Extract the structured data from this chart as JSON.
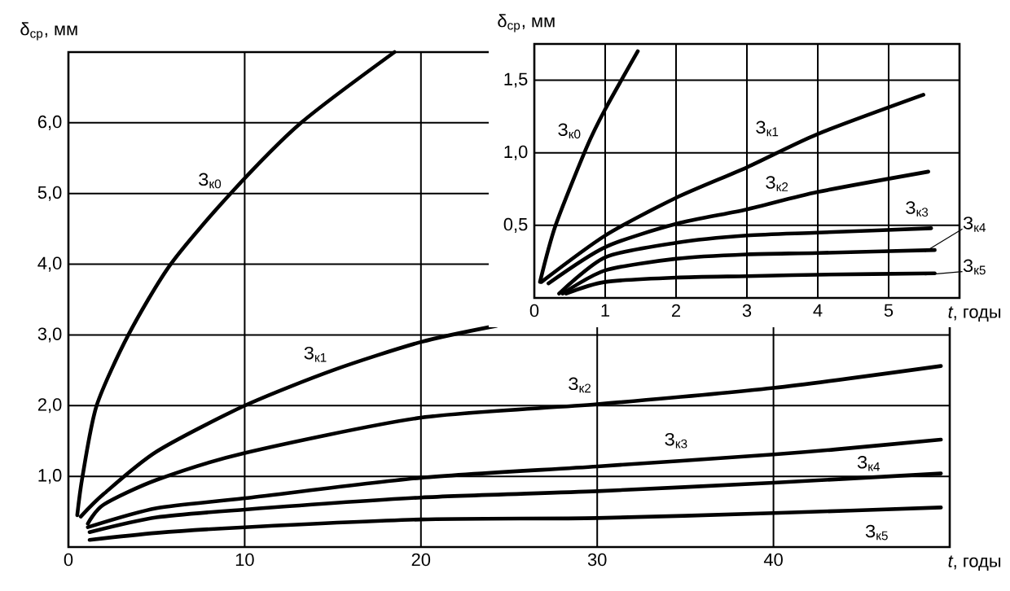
{
  "chart_data": [
    {
      "type": "line",
      "xlabel": "*t*, годы",
      "ylabel": "δ$_{ср}$, мм",
      "xlim": [
        0,
        50
      ],
      "ylim": [
        0,
        7
      ],
      "xticks": [
        0,
        10,
        20,
        30,
        40
      ],
      "yticks": [
        {
          "value": 1,
          "label": "1,0"
        },
        {
          "value": 2,
          "label": "2,0"
        },
        {
          "value": 3,
          "label": "3,0"
        },
        {
          "value": 4,
          "label": "4,0"
        },
        {
          "value": 5,
          "label": "5,0"
        },
        {
          "value": 6,
          "label": "6,0"
        }
      ],
      "grid": true,
      "series": [
        {
          "name": "З$_{к0}$",
          "color": "#000000",
          "x": [
            0.5,
            0.8,
            1.6,
            3.4,
            5.8,
            9.2,
            13.2,
            18.5
          ],
          "values": [
            0.45,
            1.0,
            2.0,
            3.0,
            4.0,
            5.0,
            6.0,
            7.0
          ]
        },
        {
          "name": "З$_{к1}$",
          "color": "#000000",
          "x": [
            0.7,
            2,
            5,
            10,
            15,
            20,
            24.3
          ],
          "values": [
            0.43,
            0.75,
            1.35,
            2.0,
            2.5,
            2.9,
            3.13
          ]
        },
        {
          "name": "З$_{к2}$",
          "color": "#000000",
          "x": [
            1.1,
            2,
            5,
            10,
            20,
            30,
            40,
            49.5
          ],
          "values": [
            0.33,
            0.6,
            0.95,
            1.33,
            1.83,
            2.02,
            2.25,
            2.56
          ]
        },
        {
          "name": "З$_{к3}$",
          "color": "#000000",
          "x": [
            1.1,
            5,
            10,
            20,
            30,
            40,
            43.5,
            49.5
          ],
          "values": [
            0.28,
            0.55,
            0.69,
            0.98,
            1.14,
            1.31,
            1.38,
            1.52
          ]
        },
        {
          "name": "З$_{к4}$",
          "color": "#000000",
          "x": [
            1.2,
            5,
            10,
            20,
            30,
            40,
            49.5
          ],
          "values": [
            0.21,
            0.42,
            0.53,
            0.7,
            0.79,
            0.91,
            1.04
          ]
        },
        {
          "name": "З$_{к5}$",
          "color": "#000000",
          "x": [
            1.2,
            5,
            10,
            20,
            30,
            40,
            49.5
          ],
          "values": [
            0.1,
            0.2,
            0.28,
            0.39,
            0.41,
            0.48,
            0.56
          ]
        }
      ]
    },
    {
      "type": "line",
      "xlabel": "*t*, годы",
      "ylabel": "δ$_{ср}$, мм",
      "xlim": [
        0,
        6
      ],
      "ylim": [
        0,
        1.75
      ],
      "xticks": [
        0,
        1,
        2,
        3,
        4,
        5
      ],
      "yticks": [
        {
          "value": 0.5,
          "label": "0,5"
        },
        {
          "value": 1,
          "label": "1,0"
        },
        {
          "value": 1.5,
          "label": "1,5"
        }
      ],
      "grid": true,
      "series": [
        {
          "name": "З$_{к0}$",
          "color": "#000000",
          "x": [
            0.08,
            0.3,
            0.74,
            1.0,
            1.46
          ],
          "values": [
            0.11,
            0.5,
            1.04,
            1.3,
            1.7
          ]
        },
        {
          "name": "З$_{к1}$",
          "color": "#000000",
          "x": [
            0.1,
            1,
            2,
            3,
            4,
            5.49
          ],
          "values": [
            0.11,
            0.43,
            0.69,
            0.9,
            1.13,
            1.4
          ]
        },
        {
          "name": "З$_{к2}$",
          "color": "#000000",
          "x": [
            0.2,
            1,
            2,
            3,
            4,
            5.56
          ],
          "values": [
            0.1,
            0.35,
            0.51,
            0.61,
            0.73,
            0.87
          ]
        },
        {
          "name": "З$_{к3}$",
          "color": "#000000",
          "x": [
            0.35,
            1,
            2,
            3,
            4,
            5.6
          ],
          "values": [
            0.03,
            0.28,
            0.38,
            0.43,
            0.45,
            0.48
          ]
        },
        {
          "name": "З$_{к4}$",
          "color": "#000000",
          "x": [
            0.4,
            1,
            2,
            3,
            4,
            5.65
          ],
          "values": [
            0.03,
            0.19,
            0.27,
            0.3,
            0.31,
            0.33
          ]
        },
        {
          "name": "З$_{к5}$",
          "color": "#000000",
          "x": [
            0.45,
            1,
            2,
            3,
            4,
            5.65
          ],
          "values": [
            0.03,
            0.11,
            0.14,
            0.15,
            0.16,
            0.17
          ]
        }
      ]
    }
  ]
}
